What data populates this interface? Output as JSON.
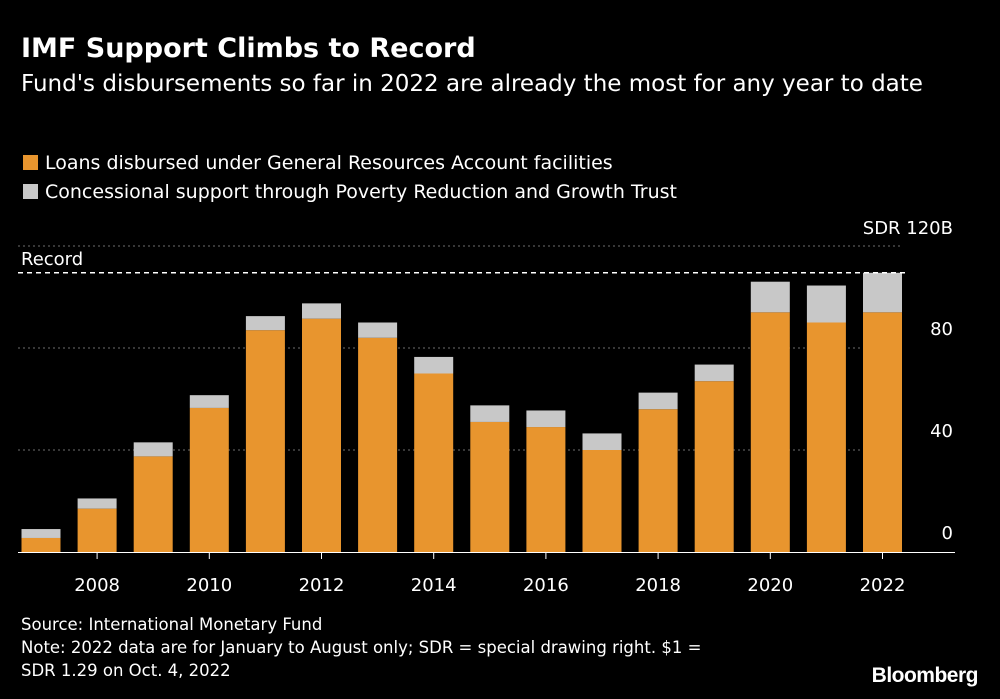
{
  "header": {
    "title": "IMF Support Climbs to Record",
    "subtitle": "Fund's disbursements so far in 2022 are already the most for any year to date"
  },
  "legend": {
    "items": [
      {
        "label": "Loans disbursed under General Resources Account facilities",
        "color": "#e8952e"
      },
      {
        "label": "Concessional support through Poverty Reduction and Growth Trust",
        "color": "#c8c8c8"
      }
    ]
  },
  "chart_data": {
    "type": "bar",
    "stacked": true,
    "categories": [
      "2007",
      "2008",
      "2009",
      "2010",
      "2011",
      "2012",
      "2013",
      "2014",
      "2015",
      "2016",
      "2017",
      "2018",
      "2019",
      "2020",
      "2021",
      "2022"
    ],
    "x_tick_labels": [
      "2008",
      "2010",
      "2012",
      "2014",
      "2016",
      "2018",
      "2020",
      "2022"
    ],
    "series": [
      {
        "name": "Loans disbursed under General Resources Account facilities",
        "color": "#e8952e",
        "values": [
          5.5,
          17,
          37.5,
          56.5,
          87,
          91.5,
          84,
          70,
          51,
          49,
          40,
          56,
          67,
          94,
          90,
          94
        ]
      },
      {
        "name": "Concessional support through Poverty Reduction and Growth Trust",
        "color": "#c8c8c8",
        "values": [
          3.5,
          4,
          5.5,
          5,
          5.5,
          6,
          6,
          6.5,
          6.5,
          6.5,
          6.5,
          6.5,
          6.5,
          12,
          14.5,
          15.5
        ]
      }
    ],
    "y_ticks": [
      0,
      40,
      80
    ],
    "y_top_label": "SDR  120B",
    "ylim": [
      0,
      120
    ],
    "reference_line": {
      "label": "Record",
      "value": 109.5
    },
    "gridlines": true
  },
  "footer": {
    "source": "Source: International Monetary Fund",
    "note_line1": "Note: 2022 data are for January to August only; SDR = special drawing right. $1 =",
    "note_line2": "SDR 1.29 on Oct. 4, 2022"
  },
  "brand": "Bloomberg"
}
